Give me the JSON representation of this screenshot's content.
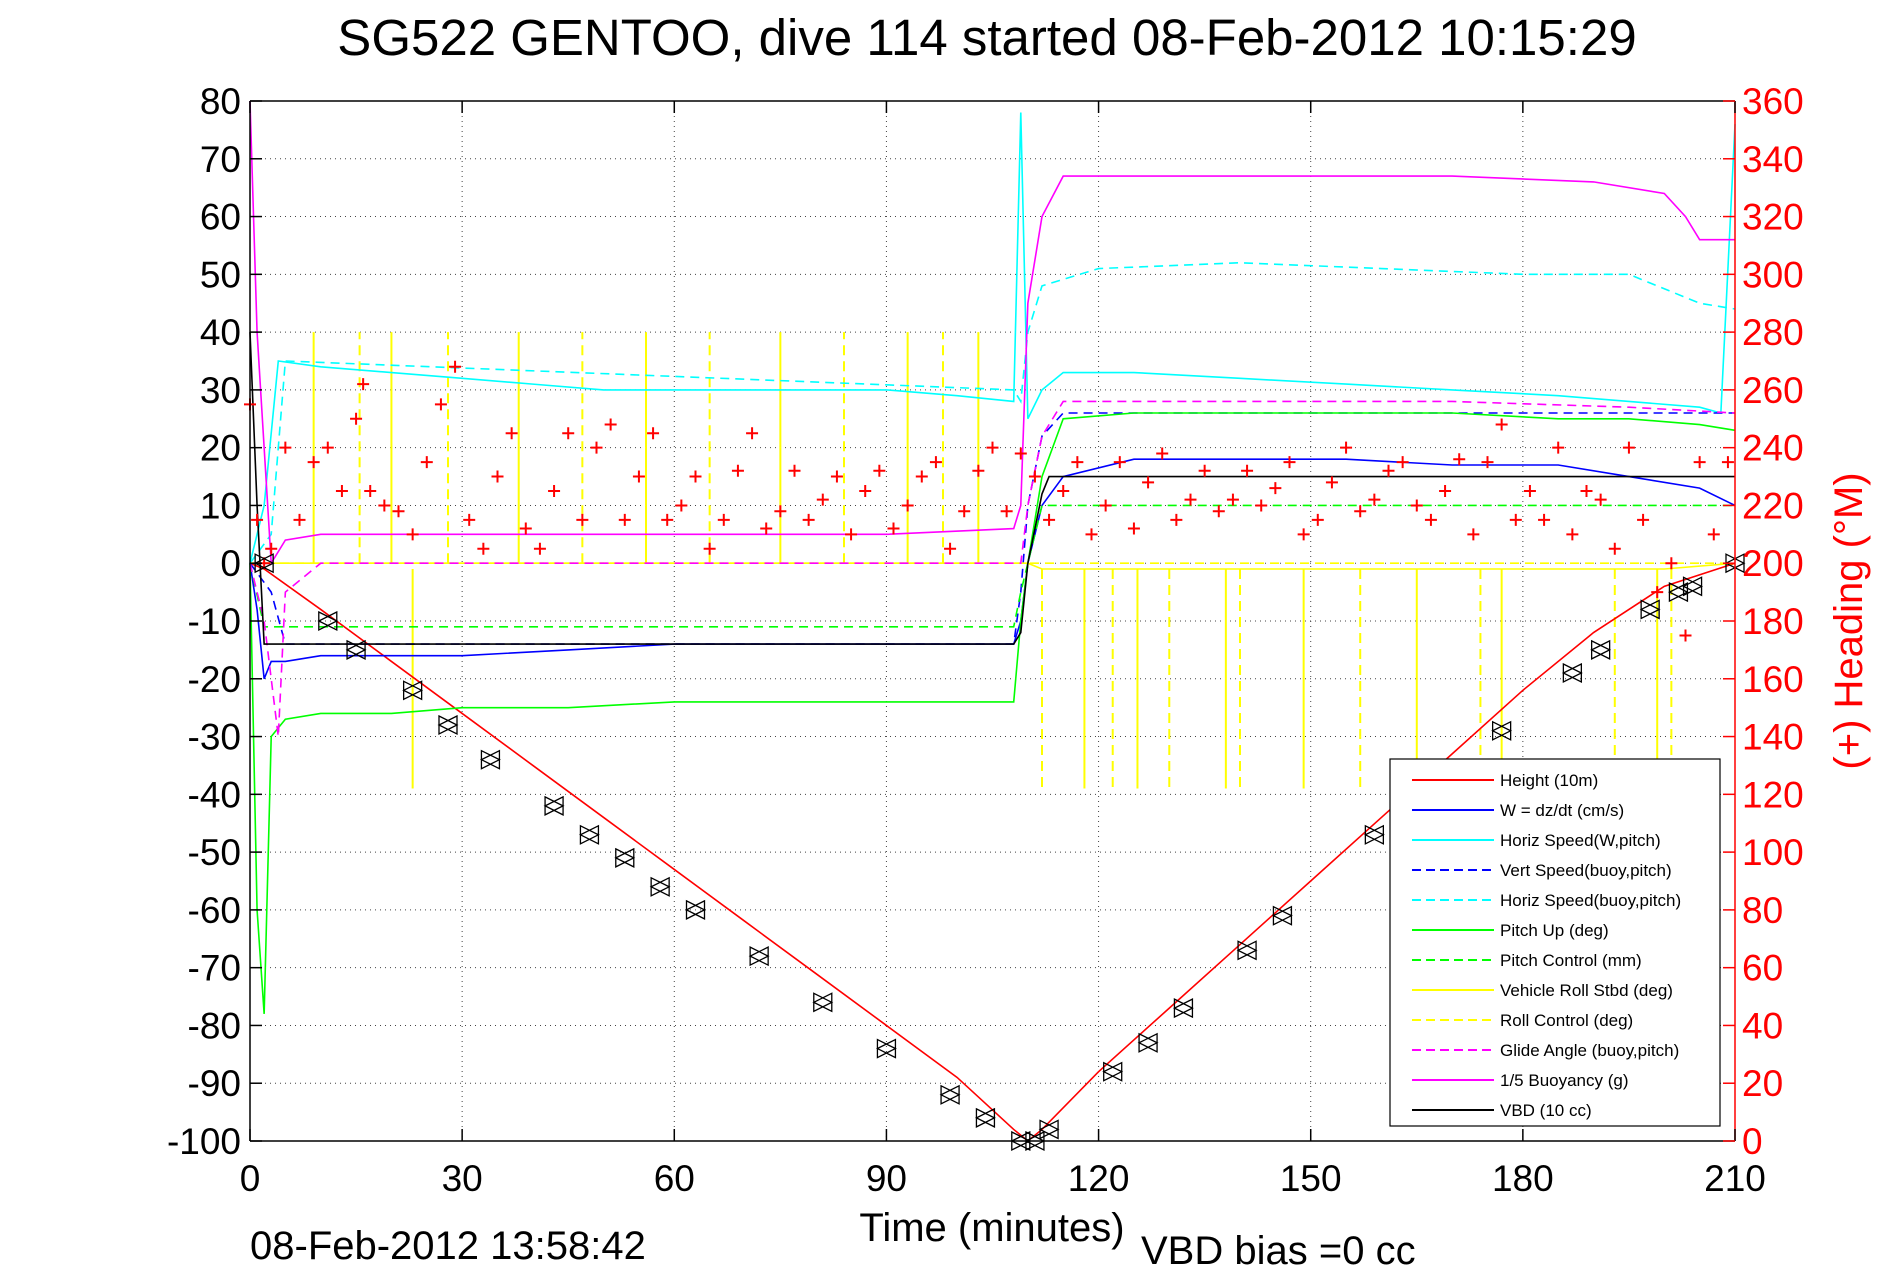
{
  "chart_data": {
    "type": "line",
    "title": "SG522 GENTOO, dive 114 started 08-Feb-2012 10:15:29",
    "xlabel": "Time (minutes)",
    "ylabel": "",
    "y2label": "(+) Heading (°M)",
    "xlim": [
      0,
      210
    ],
    "ylim": [
      -100,
      80
    ],
    "y2lim": [
      0,
      360
    ],
    "x_ticks": [
      0,
      30,
      60,
      90,
      120,
      150,
      180,
      210
    ],
    "y_ticks": [
      80,
      70,
      60,
      50,
      40,
      30,
      20,
      10,
      0,
      -10,
      -20,
      -30,
      -40,
      -50,
      -60,
      -70,
      -80,
      -90,
      -100
    ],
    "y2_ticks": [
      360,
      340,
      320,
      300,
      280,
      260,
      240,
      220,
      200,
      180,
      160,
      140,
      120,
      100,
      80,
      60,
      40,
      20,
      0
    ],
    "grid": true,
    "legend_position": "bottom-right",
    "footer_left": "08-Feb-2012 13:58:42",
    "footer_right": "VBD bias =0 cc",
    "colors": {
      "height": "#ff0000",
      "w": "#0000ff",
      "horiz_speed": "#00ffff",
      "pitch": "#00ff00",
      "roll": "#ffff00",
      "glide": "#ff00ff",
      "buoyancy": "#ff00ff",
      "vbd": "#000000",
      "heading_markers": "#ff0000",
      "right_axis": "#ff0000"
    },
    "series": [
      {
        "name": "Height (10m)",
        "color": "#ff0000",
        "style": "solid",
        "x": [
          0,
          2,
          10,
          20,
          30,
          40,
          50,
          60,
          70,
          80,
          90,
          100,
          108,
          110,
          112,
          120,
          130,
          140,
          150,
          160,
          170,
          180,
          190,
          200,
          210
        ],
        "y": [
          0,
          -1,
          -8,
          -17,
          -26,
          -35,
          -44,
          -53,
          -62,
          -71,
          -80,
          -89,
          -98,
          -100,
          -98,
          -88,
          -77,
          -66,
          -55,
          -44,
          -33,
          -22,
          -12,
          -4,
          0
        ]
      },
      {
        "name": "W = dz/dt (cm/s)",
        "color": "#0000ff",
        "style": "solid",
        "x": [
          0,
          1,
          2,
          3,
          5,
          10,
          20,
          30,
          45,
          60,
          75,
          90,
          100,
          108,
          109,
          110,
          112,
          115,
          125,
          140,
          155,
          170,
          185,
          195,
          205,
          210
        ],
        "y": [
          0,
          -8,
          -20,
          -17,
          -17,
          -16,
          -16,
          -16,
          -15,
          -14,
          -14,
          -14,
          -14,
          -14,
          -10,
          0,
          10,
          15,
          18,
          18,
          18,
          17,
          17,
          15,
          13,
          10
        ]
      },
      {
        "name": "Horiz Speed(W,pitch)",
        "color": "#00ffff",
        "style": "solid",
        "x": [
          0,
          2,
          4,
          10,
          20,
          30,
          40,
          50,
          60,
          70,
          80,
          90,
          100,
          108,
          109,
          110,
          112,
          115,
          125,
          140,
          155,
          170,
          185,
          195,
          205,
          208,
          210
        ],
        "y": [
          0,
          10,
          35,
          34,
          33,
          32,
          31,
          30,
          30,
          30,
          30,
          30,
          29,
          28,
          78,
          25,
          30,
          33,
          33,
          32,
          31,
          30,
          29,
          28,
          27,
          26,
          76
        ]
      },
      {
        "name": "Vert Speed(buoy,pitch)",
        "color": "#0000ff",
        "style": "dashed",
        "x": [
          0,
          3,
          5,
          108,
          109,
          110,
          112,
          115,
          210
        ],
        "y": [
          0,
          -5,
          -14,
          -14,
          -5,
          10,
          22,
          26,
          26
        ]
      },
      {
        "name": "Horiz Speed(buoy,pitch)",
        "color": "#00ffff",
        "style": "dashed",
        "x": [
          0,
          3,
          5,
          108,
          109,
          110,
          112,
          120,
          140,
          160,
          180,
          195,
          205,
          210
        ],
        "y": [
          0,
          5,
          35,
          30,
          28,
          40,
          48,
          51,
          52,
          51,
          50,
          50,
          45,
          44
        ]
      },
      {
        "name": "Pitch Up (deg)",
        "color": "#00ff00",
        "style": "solid",
        "x": [
          0,
          1,
          2,
          3,
          5,
          10,
          20,
          30,
          45,
          60,
          75,
          90,
          100,
          108,
          109,
          110,
          112,
          115,
          125,
          140,
          155,
          170,
          185,
          195,
          205,
          210
        ],
        "y": [
          0,
          -60,
          -78,
          -30,
          -27,
          -26,
          -26,
          -25,
          -25,
          -24,
          -24,
          -24,
          -24,
          -24,
          -10,
          0,
          15,
          25,
          26,
          26,
          26,
          26,
          25,
          25,
          24,
          23
        ]
      },
      {
        "name": "Pitch Control (mm)",
        "color": "#00ff00",
        "style": "dashed",
        "x": [
          0,
          2,
          5,
          108,
          109,
          110,
          112,
          210
        ],
        "y": [
          0,
          -11,
          -11,
          -11,
          -5,
          0,
          10,
          10
        ]
      },
      {
        "name": "Vehicle Roll Stbd (deg)",
        "color": "#ffff00",
        "style": "solid",
        "x": [
          0,
          5,
          30,
          60,
          90,
          108,
          110,
          112,
          140,
          170,
          200,
          210
        ],
        "y": [
          0,
          0,
          0,
          0,
          0,
          0,
          0,
          -1,
          -1,
          -1,
          -1,
          0
        ]
      },
      {
        "name": "Roll Control (deg)",
        "color": "#ffff00",
        "style": "dashed",
        "x": [
          0,
          5,
          108,
          110,
          210
        ],
        "y": [
          0,
          0,
          0,
          0,
          0
        ]
      },
      {
        "name": "Glide Angle (buoy,pitch)",
        "color": "#ff00ff",
        "style": "dashed",
        "x": [
          0,
          2,
          4,
          5,
          10,
          108,
          109,
          110,
          112,
          115,
          140,
          170,
          195,
          210
        ],
        "y": [
          0,
          -10,
          -30,
          -5,
          0,
          0,
          0,
          10,
          22,
          28,
          28,
          28,
          27,
          26
        ]
      },
      {
        "name": "1/5 Buoyancy (g)",
        "color": "#ff00ff",
        "style": "solid",
        "x": [
          0,
          1,
          3,
          5,
          10,
          30,
          60,
          90,
          108,
          109,
          110,
          112,
          115,
          140,
          170,
          190,
          200,
          203,
          205,
          210
        ],
        "y": [
          80,
          40,
          0,
          4,
          5,
          5,
          5,
          5,
          6,
          10,
          45,
          60,
          67,
          67,
          67,
          66,
          64,
          60,
          56,
          56
        ]
      },
      {
        "name": "VBD (10 cc)",
        "color": "#000000",
        "style": "solid",
        "x": [
          0,
          1,
          2,
          3,
          108,
          109,
          110,
          112,
          113,
          210
        ],
        "y": [
          40,
          10,
          -14,
          -14,
          -14,
          -12,
          0,
          12,
          15,
          15
        ]
      }
    ],
    "heading": {
      "name": "(+) Heading (°M)",
      "color": "#ff0000",
      "x": [
        0,
        1,
        2,
        3,
        5,
        7,
        9,
        11,
        13,
        15,
        16,
        17,
        19,
        21,
        23,
        25,
        27,
        29,
        31,
        33,
        35,
        37,
        39,
        41,
        43,
        45,
        47,
        49,
        51,
        53,
        55,
        57,
        59,
        61,
        63,
        65,
        67,
        69,
        71,
        73,
        75,
        77,
        79,
        81,
        83,
        85,
        87,
        89,
        91,
        93,
        95,
        97,
        99,
        101,
        103,
        105,
        107,
        109,
        111,
        113,
        115,
        117,
        119,
        121,
        123,
        125,
        127,
        129,
        131,
        133,
        135,
        137,
        139,
        141,
        143,
        145,
        147,
        149,
        151,
        153,
        155,
        157,
        159,
        161,
        163,
        165,
        167,
        169,
        171,
        173,
        175,
        177,
        179,
        181,
        183,
        185,
        187,
        189,
        191,
        193,
        195,
        197,
        199,
        201,
        203,
        205,
        207,
        209
      ],
      "y": [
        255,
        215,
        200,
        205,
        240,
        215,
        235,
        240,
        225,
        250,
        262,
        225,
        220,
        218,
        210,
        235,
        255,
        268,
        215,
        205,
        230,
        245,
        212,
        205,
        225,
        245,
        215,
        240,
        248,
        215,
        230,
        245,
        215,
        220,
        230,
        205,
        215,
        232,
        245,
        212,
        218,
        232,
        215,
        222,
        230,
        210,
        225,
        232,
        212,
        220,
        230,
        235,
        205,
        218,
        232,
        240,
        218,
        238,
        230,
        215,
        225,
        235,
        210,
        220,
        235,
        212,
        228,
        238,
        215,
        222,
        232,
        218,
        222,
        232,
        220,
        226,
        235,
        210,
        215,
        228,
        240,
        218,
        222,
        232,
        235,
        220,
        215,
        225,
        236,
        210,
        235,
        248,
        215,
        225,
        215,
        240,
        210,
        225,
        222,
        205,
        240,
        215,
        190,
        200,
        175,
        235,
        210,
        235
      ]
    },
    "markers": {
      "name": "height markers",
      "x": [
        2,
        11,
        15,
        23,
        28,
        34,
        43,
        48,
        53,
        58,
        63,
        72,
        81,
        90,
        99,
        104,
        109,
        111,
        113,
        122,
        127,
        132,
        141,
        146,
        159,
        177,
        187,
        191,
        198,
        202,
        204,
        210
      ],
      "y": [
        0,
        -10,
        -15,
        -22,
        -28,
        -34,
        -42,
        -47,
        -51,
        -56,
        -60,
        -68,
        -76,
        -84,
        -92,
        -96,
        -100,
        -100,
        -98,
        -88,
        -83,
        -77,
        -67,
        -61,
        -47,
        -29,
        -19,
        -15,
        -8,
        -5,
        -4,
        0
      ]
    }
  },
  "legend": {
    "items": [
      {
        "label": "Height (10m)",
        "color": "#ff0000",
        "dash": "solid"
      },
      {
        "label": "W = dz/dt (cm/s)",
        "color": "#0000ff",
        "dash": "solid"
      },
      {
        "label": "Horiz Speed(W,pitch)",
        "color": "#00ffff",
        "dash": "solid"
      },
      {
        "label": "Vert Speed(buoy,pitch)",
        "color": "#0000ff",
        "dash": "dashed"
      },
      {
        "label": "Horiz Speed(buoy,pitch)",
        "color": "#00ffff",
        "dash": "dashed"
      },
      {
        "label": "Pitch Up (deg)",
        "color": "#00ff00",
        "dash": "solid"
      },
      {
        "label": "Pitch Control (mm)",
        "color": "#00ff00",
        "dash": "dashed"
      },
      {
        "label": "Vehicle Roll Stbd (deg)",
        "color": "#ffff00",
        "dash": "solid"
      },
      {
        "label": "Roll Control (deg)",
        "color": "#ffff00",
        "dash": "dashed"
      },
      {
        "label": "Glide Angle (buoy,pitch)",
        "color": "#ff00ff",
        "dash": "dashed"
      },
      {
        "label": "1/5 Buoyancy (g)",
        "color": "#ff00ff",
        "dash": "solid"
      },
      {
        "label": "VBD (10 cc)",
        "color": "#000000",
        "dash": "solid"
      }
    ]
  }
}
